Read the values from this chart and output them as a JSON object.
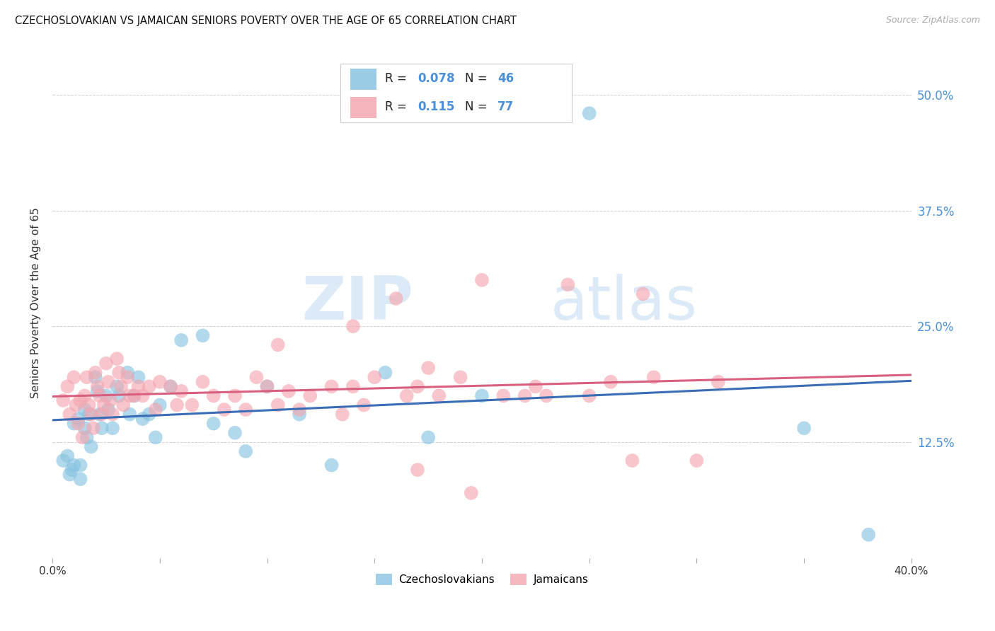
{
  "title": "CZECHOSLOVAKIAN VS JAMAICAN SENIORS POVERTY OVER THE AGE OF 65 CORRELATION CHART",
  "source": "Source: ZipAtlas.com",
  "ylabel": "Seniors Poverty Over the Age of 65",
  "ytick_labels": [
    "12.5%",
    "25.0%",
    "37.5%",
    "50.0%"
  ],
  "ytick_values": [
    0.125,
    0.25,
    0.375,
    0.5
  ],
  "xlim": [
    0.0,
    0.4
  ],
  "ylim": [
    0.0,
    0.55
  ],
  "czech_R": "0.078",
  "czech_N": "46",
  "jamaican_R": "0.115",
  "jamaican_N": "77",
  "czech_color": "#89c4e1",
  "jamaican_color": "#f4a7b0",
  "czech_line_color": "#3a6db5",
  "jamaican_line_color": "#d95f7f",
  "watermark_zip": "ZIP",
  "watermark_atlas": "atlas",
  "czech_x": [
    0.005,
    0.007,
    0.008,
    0.009,
    0.01,
    0.01,
    0.012,
    0.013,
    0.013,
    0.015,
    0.015,
    0.016,
    0.017,
    0.018,
    0.02,
    0.021,
    0.022,
    0.023,
    0.025,
    0.026,
    0.028,
    0.03,
    0.031,
    0.035,
    0.036,
    0.038,
    0.04,
    0.042,
    0.045,
    0.048,
    0.05,
    0.055,
    0.06,
    0.07,
    0.075,
    0.085,
    0.09,
    0.1,
    0.115,
    0.13,
    0.155,
    0.175,
    0.2,
    0.25,
    0.35,
    0.38
  ],
  "czech_y": [
    0.105,
    0.11,
    0.09,
    0.095,
    0.145,
    0.1,
    0.15,
    0.1,
    0.085,
    0.16,
    0.14,
    0.13,
    0.155,
    0.12,
    0.195,
    0.18,
    0.155,
    0.14,
    0.175,
    0.16,
    0.14,
    0.185,
    0.175,
    0.2,
    0.155,
    0.175,
    0.195,
    0.15,
    0.155,
    0.13,
    0.165,
    0.185,
    0.235,
    0.24,
    0.145,
    0.135,
    0.115,
    0.185,
    0.155,
    0.1,
    0.2,
    0.13,
    0.175,
    0.48,
    0.14,
    0.025
  ],
  "jamaican_x": [
    0.005,
    0.007,
    0.008,
    0.01,
    0.011,
    0.012,
    0.013,
    0.014,
    0.015,
    0.016,
    0.017,
    0.018,
    0.019,
    0.02,
    0.021,
    0.022,
    0.023,
    0.024,
    0.025,
    0.026,
    0.027,
    0.028,
    0.03,
    0.031,
    0.032,
    0.033,
    0.035,
    0.036,
    0.038,
    0.04,
    0.042,
    0.045,
    0.048,
    0.05,
    0.055,
    0.058,
    0.06,
    0.065,
    0.07,
    0.075,
    0.08,
    0.085,
    0.09,
    0.095,
    0.1,
    0.105,
    0.11,
    0.115,
    0.12,
    0.13,
    0.135,
    0.14,
    0.145,
    0.15,
    0.16,
    0.165,
    0.17,
    0.175,
    0.18,
    0.19,
    0.2,
    0.21,
    0.22,
    0.225,
    0.23,
    0.24,
    0.25,
    0.26,
    0.27,
    0.28,
    0.3,
    0.31,
    0.105,
    0.14,
    0.17,
    0.195,
    0.275
  ],
  "jamaican_y": [
    0.17,
    0.185,
    0.155,
    0.195,
    0.165,
    0.145,
    0.17,
    0.13,
    0.175,
    0.195,
    0.165,
    0.155,
    0.14,
    0.2,
    0.185,
    0.175,
    0.155,
    0.165,
    0.21,
    0.19,
    0.17,
    0.155,
    0.215,
    0.2,
    0.185,
    0.165,
    0.195,
    0.175,
    0.175,
    0.185,
    0.175,
    0.185,
    0.16,
    0.19,
    0.185,
    0.165,
    0.18,
    0.165,
    0.19,
    0.175,
    0.16,
    0.175,
    0.16,
    0.195,
    0.185,
    0.165,
    0.18,
    0.16,
    0.175,
    0.185,
    0.155,
    0.185,
    0.165,
    0.195,
    0.28,
    0.175,
    0.185,
    0.205,
    0.175,
    0.195,
    0.3,
    0.175,
    0.175,
    0.185,
    0.175,
    0.295,
    0.175,
    0.19,
    0.105,
    0.195,
    0.105,
    0.19,
    0.23,
    0.25,
    0.095,
    0.07,
    0.285
  ]
}
